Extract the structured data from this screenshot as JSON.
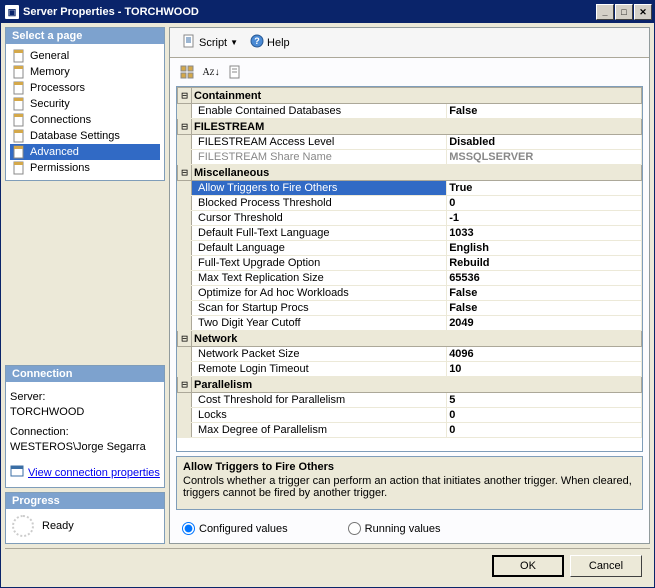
{
  "window": {
    "title": "Server Properties - TORCHWOOD"
  },
  "toolbar": {
    "script": "Script",
    "help": "Help"
  },
  "sidebar": {
    "select_page": "Select a page",
    "items": [
      {
        "label": "General"
      },
      {
        "label": "Memory"
      },
      {
        "label": "Processors"
      },
      {
        "label": "Security"
      },
      {
        "label": "Connections"
      },
      {
        "label": "Database Settings"
      },
      {
        "label": "Advanced"
      },
      {
        "label": "Permissions"
      }
    ],
    "selected_index": 6
  },
  "connection": {
    "header": "Connection",
    "server_label": "Server:",
    "server_value": "TORCHWOOD",
    "connection_label": "Connection:",
    "connection_value": "WESTEROS\\Jorge Segarra",
    "view_props": "View connection properties"
  },
  "progress": {
    "header": "Progress",
    "status": "Ready"
  },
  "grid": {
    "categories": [
      {
        "name": "Containment",
        "rows": [
          {
            "key": "Enable Contained Databases",
            "val": "False"
          }
        ]
      },
      {
        "name": "FILESTREAM",
        "rows": [
          {
            "key": "FILESTREAM Access Level",
            "val": "Disabled"
          },
          {
            "key": "FILESTREAM Share Name",
            "val": "MSSQLSERVER",
            "disabled": true
          }
        ]
      },
      {
        "name": "Miscellaneous",
        "rows": [
          {
            "key": "Allow Triggers to Fire Others",
            "val": "True",
            "selected": true
          },
          {
            "key": "Blocked Process Threshold",
            "val": "0"
          },
          {
            "key": "Cursor Threshold",
            "val": "-1"
          },
          {
            "key": "Default Full-Text Language",
            "val": "1033"
          },
          {
            "key": "Default Language",
            "val": "English"
          },
          {
            "key": "Full-Text Upgrade Option",
            "val": "Rebuild"
          },
          {
            "key": "Max Text Replication Size",
            "val": "65536"
          },
          {
            "key": "Optimize for Ad hoc Workloads",
            "val": "False"
          },
          {
            "key": "Scan for Startup Procs",
            "val": "False"
          },
          {
            "key": "Two Digit Year Cutoff",
            "val": "2049"
          }
        ]
      },
      {
        "name": "Network",
        "rows": [
          {
            "key": "Network Packet Size",
            "val": "4096"
          },
          {
            "key": "Remote Login Timeout",
            "val": "10"
          }
        ]
      },
      {
        "name": "Parallelism",
        "rows": [
          {
            "key": "Cost Threshold for Parallelism",
            "val": "5"
          },
          {
            "key": "Locks",
            "val": "0"
          },
          {
            "key": "Max Degree of Parallelism",
            "val": "0"
          }
        ]
      }
    ]
  },
  "description": {
    "title": "Allow Triggers to Fire Others",
    "text": "Controls whether a trigger can perform an action that initiates another trigger. When cleared, triggers cannot be fired by another trigger."
  },
  "radios": {
    "configured": "Configured values",
    "running": "Running values"
  },
  "buttons": {
    "ok": "OK",
    "cancel": "Cancel"
  }
}
